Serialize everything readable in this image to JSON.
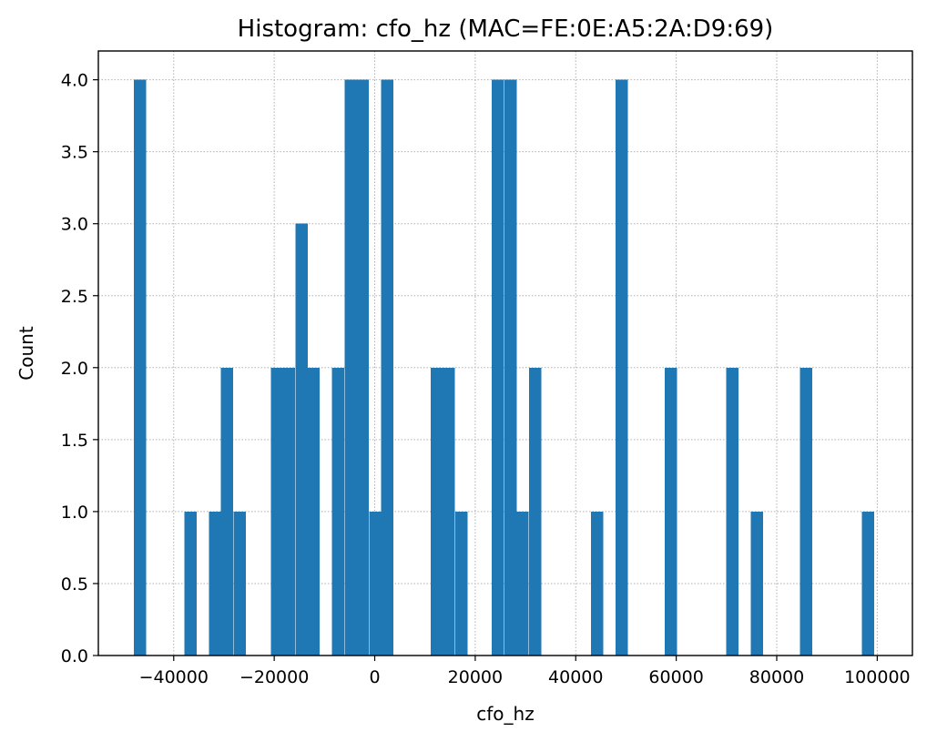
{
  "chart_data": {
    "type": "bar",
    "title": "Histogram: cfo_hz (MAC=FE:0E:A5:2A:D9:69)",
    "xlabel": "cfo_hz",
    "ylabel": "Count",
    "xlim": [
      -55000,
      107000
    ],
    "ylim": [
      0,
      4.2
    ],
    "grid": true,
    "color": "#1f77b4",
    "bin_width": 2450,
    "xticks": [
      -40000,
      -20000,
      0,
      20000,
      40000,
      60000,
      80000,
      100000
    ],
    "xtick_labels": [
      "−40000",
      "−20000",
      "0",
      "20000",
      "40000",
      "60000",
      "80000",
      "100000"
    ],
    "yticks": [
      0,
      0.5,
      1,
      1.5,
      2,
      2.5,
      3,
      3.5,
      4
    ],
    "ytick_labels": [
      "0.0",
      "0.5",
      "1.0",
      "1.5",
      "2.0",
      "2.5",
      "3.0",
      "3.5",
      "4.0"
    ],
    "bins": [
      {
        "x": -47900,
        "count": 4
      },
      {
        "x": -37900,
        "count": 1
      },
      {
        "x": -33000,
        "count": 1
      },
      {
        "x": -30600,
        "count": 2
      },
      {
        "x": -28100,
        "count": 1
      },
      {
        "x": -20700,
        "count": 2
      },
      {
        "x": -18300,
        "count": 2
      },
      {
        "x": -15800,
        "count": 3
      },
      {
        "x": -13400,
        "count": 2
      },
      {
        "x": -8500,
        "count": 2
      },
      {
        "x": -6000,
        "count": 4
      },
      {
        "x": -3600,
        "count": 4
      },
      {
        "x": -1100,
        "count": 1
      },
      {
        "x": 1300,
        "count": 4
      },
      {
        "x": 11100,
        "count": 2
      },
      {
        "x": 13500,
        "count": 2
      },
      {
        "x": 16000,
        "count": 1
      },
      {
        "x": 23300,
        "count": 4
      },
      {
        "x": 25800,
        "count": 4
      },
      {
        "x": 28200,
        "count": 1
      },
      {
        "x": 30700,
        "count": 2
      },
      {
        "x": 43000,
        "count": 1
      },
      {
        "x": 47900,
        "count": 4
      },
      {
        "x": 57700,
        "count": 2
      },
      {
        "x": 69900,
        "count": 2
      },
      {
        "x": 74800,
        "count": 1
      },
      {
        "x": 84600,
        "count": 2
      },
      {
        "x": 96900,
        "count": 1
      }
    ]
  }
}
